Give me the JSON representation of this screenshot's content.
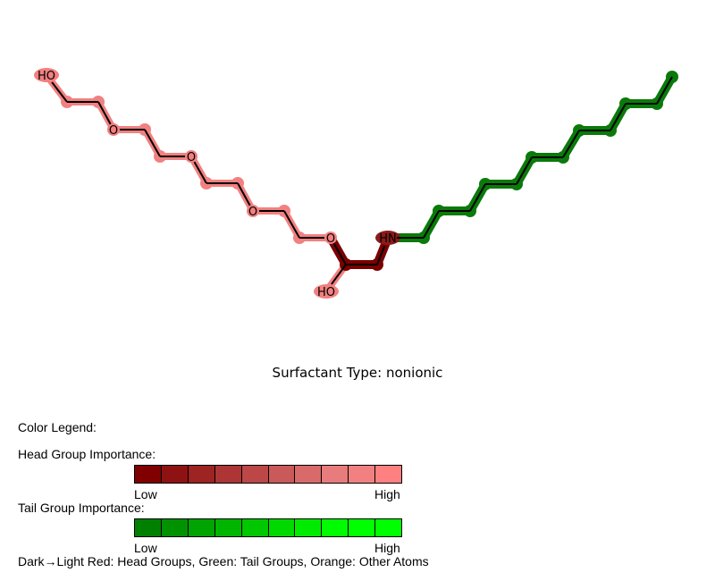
{
  "molecule": {
    "colors": {
      "head_light": "#f28080",
      "head_dark": "#7a0000",
      "head_dark_edge": "#8b1a1a",
      "tail": "#0a7a0a",
      "bond": "#000000"
    },
    "atom_labels": {
      "hydroxyl_top": "HO",
      "ether_1": "O",
      "ether_2": "O",
      "ether_3": "O",
      "ether_4": "O",
      "amide_nitrogen": "HN",
      "hydroxyl_bottom": "HO"
    }
  },
  "caption": "Surfactant Type: nonionic",
  "legend": {
    "title": "Color Legend:",
    "head": {
      "label": "Head Group Importance:",
      "low": "Low",
      "high": "High",
      "colors": [
        "#800000",
        "#8f1212",
        "#9e2323",
        "#ad3535",
        "#bc4747",
        "#ca5959",
        "#d96a6a",
        "#e87c7c",
        "#f28080",
        "#ff8080"
      ]
    },
    "tail": {
      "label": "Tail Group Importance:",
      "low": "Low",
      "high": "High",
      "colors": [
        "#008000",
        "#009200",
        "#00a400",
        "#00b500",
        "#00c700",
        "#00d900",
        "#00eb00",
        "#00fc00",
        "#00ff00",
        "#00ff00"
      ]
    },
    "footnote": "Dark→Light Red: Head Groups, Green: Tail Groups, Orange: Other Atoms"
  }
}
